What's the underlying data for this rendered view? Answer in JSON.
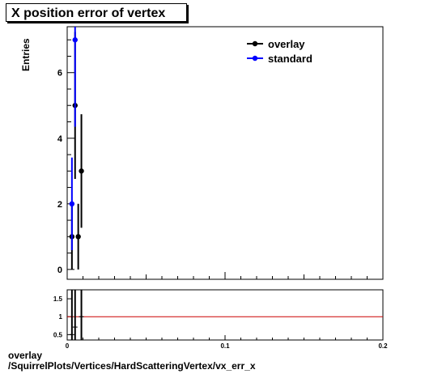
{
  "chart_data": {
    "title": "X position error of vertex",
    "type": "scatter",
    "ylabel": "Entries",
    "xlim": [
      0,
      0.2
    ],
    "ylim": [
      -0.3,
      7.4
    ],
    "x_ticks": [
      0,
      0.1,
      0.2
    ],
    "x_tick_labels": [
      "0",
      "0.1",
      "0.2"
    ],
    "y_ticks": [
      0,
      2,
      4,
      6
    ],
    "y_tick_labels": [
      "0",
      "2",
      "4",
      "6"
    ],
    "legend_position": "top-right",
    "series": [
      {
        "name": "overlay",
        "color": "#000000",
        "points": [
          {
            "x": 0.003,
            "y": 1,
            "err": 1
          },
          {
            "x": 0.005,
            "y": 5,
            "err": 2.24
          },
          {
            "x": 0.007,
            "y": 1,
            "err": 1
          },
          {
            "x": 0.009,
            "y": 3,
            "err": 1.73
          }
        ]
      },
      {
        "name": "standard",
        "color": "#0000ff",
        "points": [
          {
            "x": 0.003,
            "y": 2,
            "err": 1.41
          },
          {
            "x": 0.005,
            "y": 7,
            "err": 2.65
          }
        ]
      }
    ],
    "ratio": {
      "ylim": [
        0.35,
        1.75
      ],
      "y_ticks": [
        0.5,
        1,
        1.5
      ],
      "y_tick_labels": [
        "0.5",
        "1",
        "1.5"
      ],
      "reference_value": 1,
      "reference_color": "#cc0000",
      "points": [
        {
          "x": 0.003,
          "y": 0.5
        },
        {
          "x": 0.005,
          "y": 0.71
        },
        {
          "x": 0.009,
          "y": 1.0
        }
      ]
    }
  },
  "caption": {
    "line1": "overlay",
    "line2": "/SquirrelPlots/Vertices/HardScatteringVertex/vx_err_x"
  }
}
